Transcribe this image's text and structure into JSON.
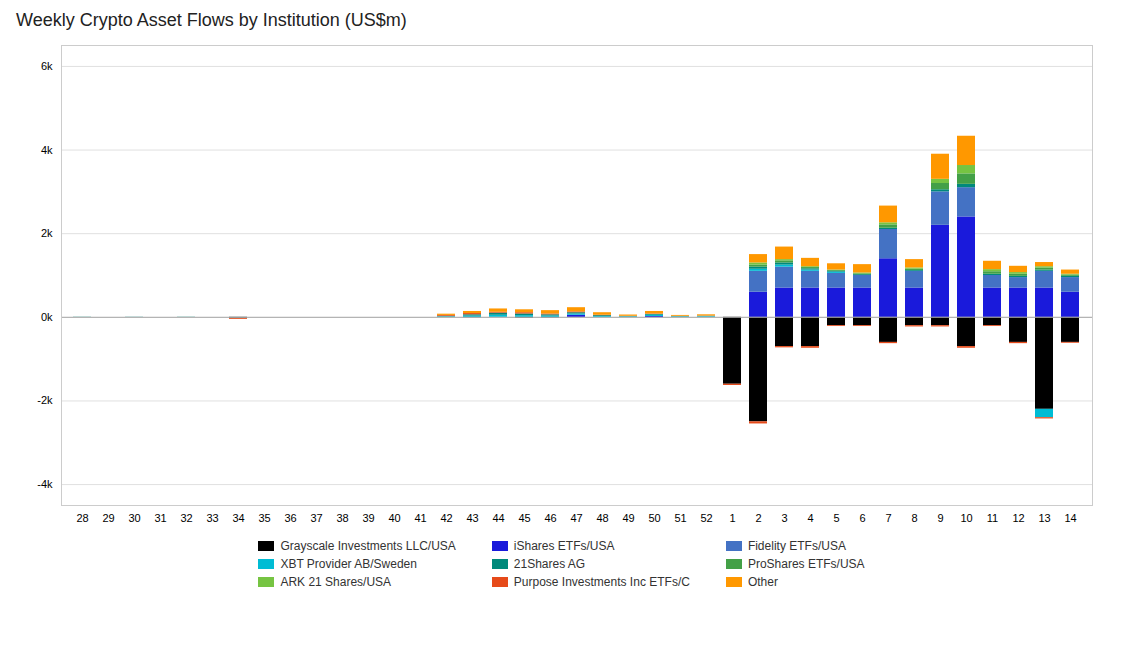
{
  "chart_data": {
    "type": "bar",
    "stacked": true,
    "title": "Weekly Crypto Asset Flows by Institution (US$m)",
    "categories": [
      28,
      29,
      30,
      31,
      32,
      33,
      34,
      35,
      36,
      37,
      38,
      39,
      40,
      41,
      42,
      43,
      44,
      45,
      46,
      47,
      48,
      49,
      50,
      51,
      52,
      1,
      2,
      3,
      4,
      5,
      6,
      7,
      8,
      9,
      10,
      11,
      12,
      13,
      14
    ],
    "series": [
      {
        "name": "Grayscale Investments LLC/USA",
        "color": "#000000",
        "values": [
          0,
          0,
          0,
          0,
          0,
          0,
          -20,
          0,
          0,
          0,
          0,
          0,
          0,
          0,
          0,
          -10,
          0,
          -20,
          -15,
          0,
          0,
          0,
          -5,
          0,
          0,
          -1600,
          -2500,
          -700,
          -700,
          -200,
          -200,
          -600,
          -200,
          -200,
          -700,
          -200,
          -600,
          -2200,
          -600
        ]
      },
      {
        "name": "iShares ETFs/USA",
        "color": "#1a1adb",
        "values": [
          0,
          0,
          0,
          0,
          0,
          0,
          0,
          0,
          0,
          0,
          0,
          0,
          0,
          0,
          0,
          0,
          0,
          0,
          0,
          50,
          0,
          0,
          20,
          0,
          0,
          0,
          600,
          700,
          700,
          700,
          700,
          1400,
          700,
          2200,
          2400,
          700,
          700,
          700,
          600
        ]
      },
      {
        "name": "Fidelity ETFs/USA",
        "color": "#4472c4",
        "values": [
          0,
          0,
          0,
          0,
          0,
          0,
          0,
          0,
          0,
          0,
          0,
          0,
          0,
          0,
          0,
          0,
          0,
          0,
          0,
          0,
          0,
          0,
          0,
          0,
          0,
          0,
          500,
          500,
          400,
          350,
          300,
          700,
          400,
          800,
          700,
          300,
          250,
          400,
          350
        ]
      },
      {
        "name": "XBT Provider AB/Sweden",
        "color": "#00bcd4",
        "values": [
          0,
          0,
          0,
          0,
          0,
          0,
          0,
          0,
          0,
          0,
          0,
          0,
          0,
          0,
          10,
          30,
          50,
          40,
          30,
          30,
          20,
          10,
          30,
          10,
          15,
          0,
          50,
          50,
          30,
          30,
          0,
          0,
          0,
          0,
          0,
          0,
          0,
          -200,
          0
        ]
      },
      {
        "name": "21Shares AG",
        "color": "#00897b",
        "values": [
          5,
          0,
          -5,
          0,
          5,
          0,
          -10,
          0,
          0,
          0,
          0,
          0,
          0,
          0,
          15,
          30,
          50,
          40,
          30,
          30,
          20,
          10,
          20,
          10,
          10,
          0,
          50,
          50,
          30,
          20,
          20,
          30,
          20,
          50,
          80,
          30,
          30,
          30,
          30
        ]
      },
      {
        "name": "ProShares ETFs/USA",
        "color": "#43a047",
        "values": [
          0,
          0,
          0,
          0,
          0,
          0,
          0,
          0,
          0,
          0,
          0,
          0,
          0,
          0,
          0,
          0,
          0,
          0,
          0,
          0,
          0,
          0,
          0,
          0,
          0,
          0,
          50,
          50,
          30,
          20,
          20,
          80,
          30,
          150,
          250,
          60,
          50,
          50,
          30
        ]
      },
      {
        "name": "ARK 21 Shares/USA",
        "color": "#76c442",
        "values": [
          0,
          0,
          0,
          0,
          0,
          0,
          0,
          0,
          0,
          0,
          0,
          0,
          0,
          0,
          0,
          0,
          0,
          0,
          0,
          0,
          0,
          0,
          0,
          0,
          0,
          0,
          50,
          30,
          20,
          10,
          20,
          50,
          30,
          100,
          200,
          50,
          40,
          30,
          20
        ]
      },
      {
        "name": "Purpose Investments Inc ETFs/C",
        "color": "#e64a19",
        "values": [
          0,
          0,
          0,
          0,
          0,
          0,
          -20,
          0,
          0,
          0,
          0,
          0,
          0,
          0,
          20,
          30,
          20,
          30,
          20,
          20,
          10,
          5,
          10,
          5,
          5,
          -30,
          -50,
          -30,
          -40,
          -20,
          -20,
          -30,
          -30,
          -30,
          -40,
          -20,
          -30,
          -30,
          -20
        ]
      },
      {
        "name": "Other",
        "color": "#ff9800",
        "values": [
          0,
          0,
          0,
          0,
          0,
          0,
          0,
          0,
          0,
          0,
          0,
          0,
          0,
          0,
          30,
          50,
          80,
          70,
          80,
          100,
          60,
          30,
          60,
          20,
          30,
          0,
          200,
          300,
          200,
          150,
          200,
          400,
          200,
          600,
          700,
          200,
          150,
          100,
          100
        ]
      }
    ],
    "ylim": [
      -4500,
      6500
    ],
    "yticks": [
      {
        "value": -4000,
        "label": "-4k"
      },
      {
        "value": -2000,
        "label": "-2k"
      },
      {
        "value": 0,
        "label": "0k"
      },
      {
        "value": 2000,
        "label": "2k"
      },
      {
        "value": 4000,
        "label": "4k"
      },
      {
        "value": 6000,
        "label": "6k"
      }
    ],
    "grid": true,
    "legend": "bottom"
  }
}
